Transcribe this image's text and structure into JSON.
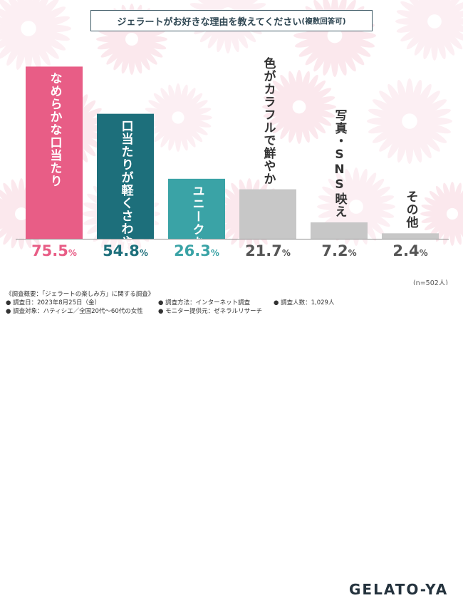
{
  "title": {
    "main": "ジェラートがお好きな理由を教えてください",
    "sub": "(複数回答可)"
  },
  "sample_note": "(n=502人)",
  "chart_data": {
    "type": "bar",
    "title": "ジェラートがお好きな理由を教えてください(複数回答可)",
    "categories": [
      "なめらかな口当たり",
      "口当たりが軽くさわやか",
      "ユニークなフレーバー",
      "色がカラフルで鮮やか",
      "写真・SNS映え",
      "その他"
    ],
    "values": [
      75.5,
      54.8,
      26.3,
      21.7,
      7.2,
      2.4
    ],
    "value_labels": [
      "75.5",
      "54.8",
      "26.3",
      "21.7",
      "7.2",
      "2.4"
    ],
    "unit": "%",
    "ylim": [
      0,
      80
    ],
    "colors": [
      "#e85d86",
      "#1d6f7b",
      "#3aa3a6",
      "#c7c7c7",
      "#c7c7c7",
      "#c7c7c7"
    ],
    "label_colors": [
      "#ffffff",
      "#ffffff",
      "#ffffff",
      "#333333",
      "#333333",
      "#333333"
    ],
    "pct_colors": [
      "#e85d86",
      "#1d6f7b",
      "#3aa3a6",
      "#555555",
      "#555555",
      "#555555"
    ]
  },
  "footer": {
    "col1": [
      "《調査概要：「ジェラートの楽しみ方」に関する調査》",
      "● 調査日：2023年8月25日（金）",
      "● 調査対象：ハティシエ／全国20代～60代の女性"
    ],
    "col2": [
      "● 調査方法：インターネット調査",
      "● モニター提供元：ゼネラルリサーチ"
    ],
    "col3": [
      "● 調査人数：1,029人"
    ],
    "logo": "GELATO-YA"
  }
}
